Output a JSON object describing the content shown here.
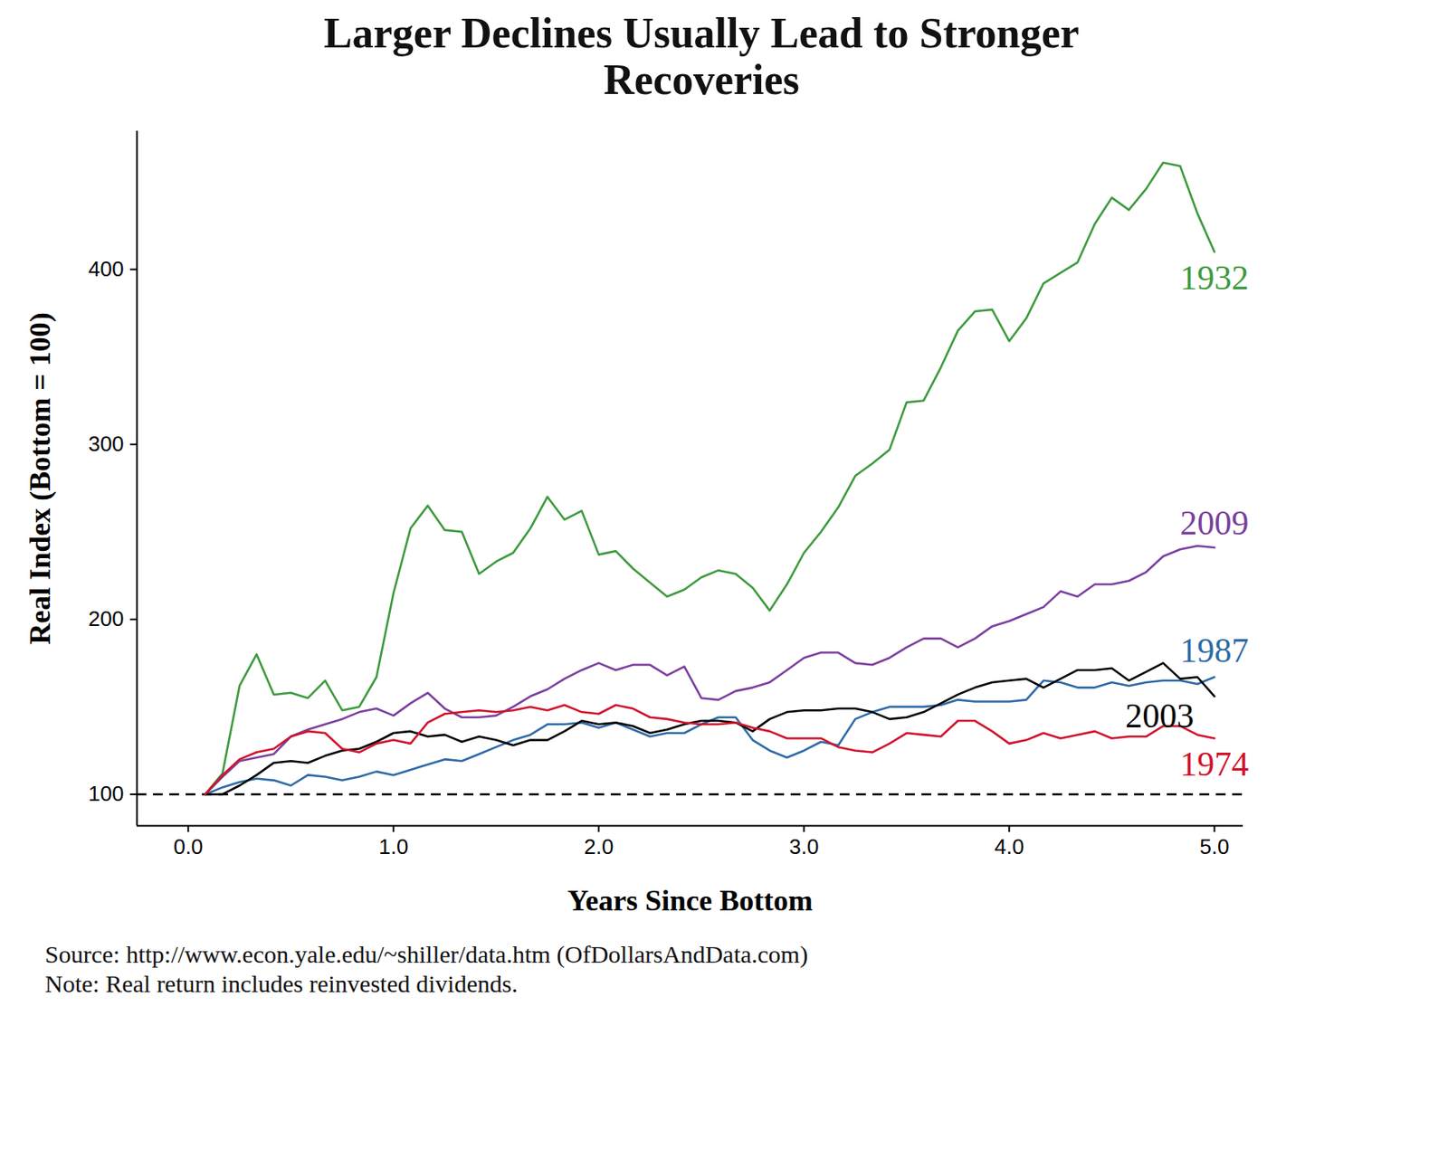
{
  "chart_data": {
    "type": "line",
    "title": "Larger Declines Usually Lead to Stronger Recoveries",
    "x_label": "Years Since Bottom",
    "y_label": "Real Index (Bottom = 100)",
    "source": "Source:  http://www.econ.yale.edu/~shiller/data.htm (OfDollarsAndData.com)",
    "note": "Note:  Real return includes reinvested dividends.",
    "xlim": [
      -0.25,
      5.14
    ],
    "ylim": [
      82,
      479
    ],
    "xticks": [
      0,
      1,
      2,
      3,
      4,
      5
    ],
    "yticks": [
      100,
      200,
      300,
      400
    ],
    "grid": false,
    "baseline": {
      "value": 100,
      "line_style": "dashed"
    },
    "x": [
      0.083,
      0.167,
      0.25,
      0.333,
      0.417,
      0.5,
      0.583,
      0.667,
      0.75,
      0.833,
      0.917,
      1,
      1.083,
      1.167,
      1.25,
      1.333,
      1.417,
      1.5,
      1.583,
      1.667,
      1.75,
      1.833,
      1.917,
      2,
      2.083,
      2.167,
      2.25,
      2.333,
      2.417,
      2.5,
      2.583,
      2.667,
      2.75,
      2.833,
      2.917,
      3,
      3.083,
      3.167,
      3.25,
      3.333,
      3.417,
      3.5,
      3.583,
      3.667,
      3.75,
      3.833,
      3.917,
      4,
      4.083,
      4.167,
      4.25,
      4.333,
      4.417,
      4.5,
      4.583,
      4.667,
      4.75,
      4.833,
      4.917,
      5
    ],
    "series": [
      {
        "name": "1932",
        "color": "#3d9a3d",
        "values": [
          100,
          112,
          162,
          180,
          157,
          158,
          155,
          165,
          148,
          150,
          167,
          215,
          252,
          265,
          251,
          250,
          226,
          233,
          238,
          252,
          270,
          257,
          262,
          237,
          239,
          229,
          221,
          213,
          217,
          224,
          228,
          226,
          218,
          205,
          220,
          238,
          250,
          264,
          282,
          289,
          297,
          324,
          325,
          344,
          365,
          376,
          377,
          359,
          372,
          392,
          398,
          404,
          426,
          441,
          434,
          446,
          461,
          459,
          432,
          410
        ]
      },
      {
        "name": "2009",
        "color": "#7b3f9e",
        "values": [
          100,
          110,
          119,
          121,
          123,
          133,
          137,
          140,
          143,
          147,
          149,
          145,
          152,
          158,
          149,
          144,
          144,
          145,
          150,
          156,
          160,
          166,
          171,
          175,
          171,
          174,
          174,
          168,
          173,
          155,
          154,
          159,
          161,
          164,
          171,
          178,
          181,
          181,
          175,
          174,
          178,
          184,
          189,
          189,
          184,
          189,
          196,
          199,
          203,
          207,
          216,
          213,
          220,
          220,
          222,
          227,
          236,
          240,
          242,
          241
        ]
      },
      {
        "name": "1987",
        "color": "#2e6aa6",
        "values": [
          100,
          104,
          107,
          109,
          108,
          105,
          111,
          110,
          108,
          110,
          113,
          111,
          114,
          117,
          120,
          119,
          123,
          127,
          131,
          134,
          140,
          140,
          141,
          138,
          141,
          137,
          133,
          135,
          135,
          140,
          144,
          144,
          131,
          125,
          121,
          125,
          130,
          128,
          143,
          147,
          150,
          150,
          150,
          151,
          154,
          153,
          153,
          153,
          154,
          165,
          164,
          161,
          161,
          164,
          162,
          164,
          165,
          165,
          163,
          167
        ]
      },
      {
        "name": "2003",
        "color": "#000000",
        "values": [
          100,
          100,
          105,
          111,
          118,
          119,
          118,
          122,
          125,
          126,
          130,
          135,
          136,
          133,
          134,
          130,
          133,
          131,
          128,
          131,
          131,
          136,
          142,
          140,
          141,
          139,
          135,
          137,
          140,
          142,
          142,
          141,
          136,
          143,
          147,
          148,
          148,
          149,
          149,
          147,
          143,
          144,
          147,
          152,
          157,
          161,
          164,
          165,
          166,
          161,
          166,
          171,
          171,
          172,
          165,
          170,
          175,
          166,
          167,
          156
        ]
      },
      {
        "name": "1974",
        "color": "#d0132c",
        "values": [
          100,
          111,
          120,
          124,
          126,
          133,
          136,
          135,
          126,
          124,
          129,
          131,
          129,
          141,
          146,
          147,
          148,
          147,
          148,
          150,
          148,
          151,
          147,
          146,
          151,
          149,
          144,
          143,
          141,
          140,
          140,
          141,
          138,
          136,
          132,
          132,
          132,
          127,
          125,
          124,
          129,
          135,
          134,
          133,
          142,
          142,
          136,
          129,
          131,
          135,
          132,
          134,
          136,
          132,
          133,
          133,
          139,
          139,
          134,
          132
        ]
      }
    ]
  }
}
